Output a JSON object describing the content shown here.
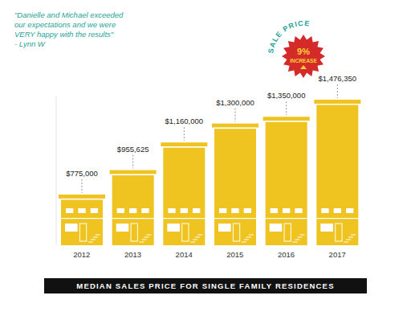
{
  "chart_data": {
    "type": "bar",
    "title": "MEDIAN SALES PRICE FOR SINGLE FAMILY RESIDENCES",
    "categories": [
      "2012",
      "2013",
      "2014",
      "2015",
      "2016",
      "2017"
    ],
    "values": [
      775000,
      955625,
      1160000,
      1300000,
      1350000,
      1476350
    ],
    "value_labels": [
      "$775,000",
      "$955,625",
      "$1,160,000",
      "$1,300,000",
      "$1,350,000",
      "$1,476,350"
    ],
    "data_labels": true,
    "color": "#efc320",
    "ylim": [
      400000,
      1500000
    ],
    "tick_labels": "x",
    "grid": false,
    "annotations": {
      "quote": [
        "\"Danielle and Michael exceeded",
        "our expectations and we were",
        "VERY happy with the results\"",
        "- Lynn W"
      ],
      "badge": {
        "title": "SALE PRICE",
        "value": 9,
        "value_label": "9%",
        "text": "INCREASE"
      }
    }
  }
}
